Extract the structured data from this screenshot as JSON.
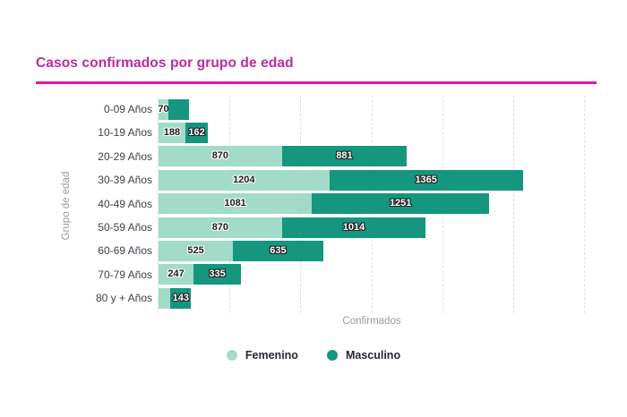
{
  "title": "Casos confirmados por grupo de edad",
  "colors": {
    "title_text": "#bd2ba0",
    "underline": "#e414aa",
    "femenino": "#a2dbc7",
    "masculino": "#14977e",
    "gridline": "#e2e2e2",
    "tick_label": "#3f3f4b",
    "axis_title": "#9a9a9a",
    "legend_text": "#26263b"
  },
  "chart_data": {
    "type": "bar",
    "orientation": "horizontal",
    "stacked": true,
    "title": "Casos confirmados por grupo de edad",
    "xlabel": "Confirmados",
    "ylabel": "Grupo de edad",
    "xlim": [
      0,
      3000
    ],
    "grid": true,
    "gridline_step": 500,
    "x_tick_labels_visible": false,
    "legend_position": "bottom",
    "categories": [
      "0-09 Años",
      "10-19 Años",
      "20-29 Años",
      "30-39 Años",
      "40-49 Años",
      "50-59 Años",
      "60-69 Años",
      "70-79 Años",
      "80 y + Años"
    ],
    "series": [
      {
        "name": "Femenino",
        "color": "#a2dbc7",
        "values": [
          70,
          188,
          870,
          1204,
          1081,
          870,
          525,
          247,
          85
        ],
        "visible_labels": [
          "70",
          "188",
          "870",
          "1204",
          "1081",
          "870",
          "525",
          "247",
          ""
        ]
      },
      {
        "name": "Masculino",
        "color": "#14977e",
        "values": [
          145,
          162,
          881,
          1365,
          1251,
          1014,
          635,
          335,
          143
        ],
        "visible_labels": [
          "",
          "162",
          "881",
          "1365",
          "1251",
          "1014",
          "635",
          "335",
          "143"
        ]
      }
    ],
    "note": "Segments without visible_labels are estimated from bar lengths against gridlines"
  },
  "legend": {
    "items": [
      {
        "label": "Femenino"
      },
      {
        "label": "Masculino"
      }
    ]
  }
}
